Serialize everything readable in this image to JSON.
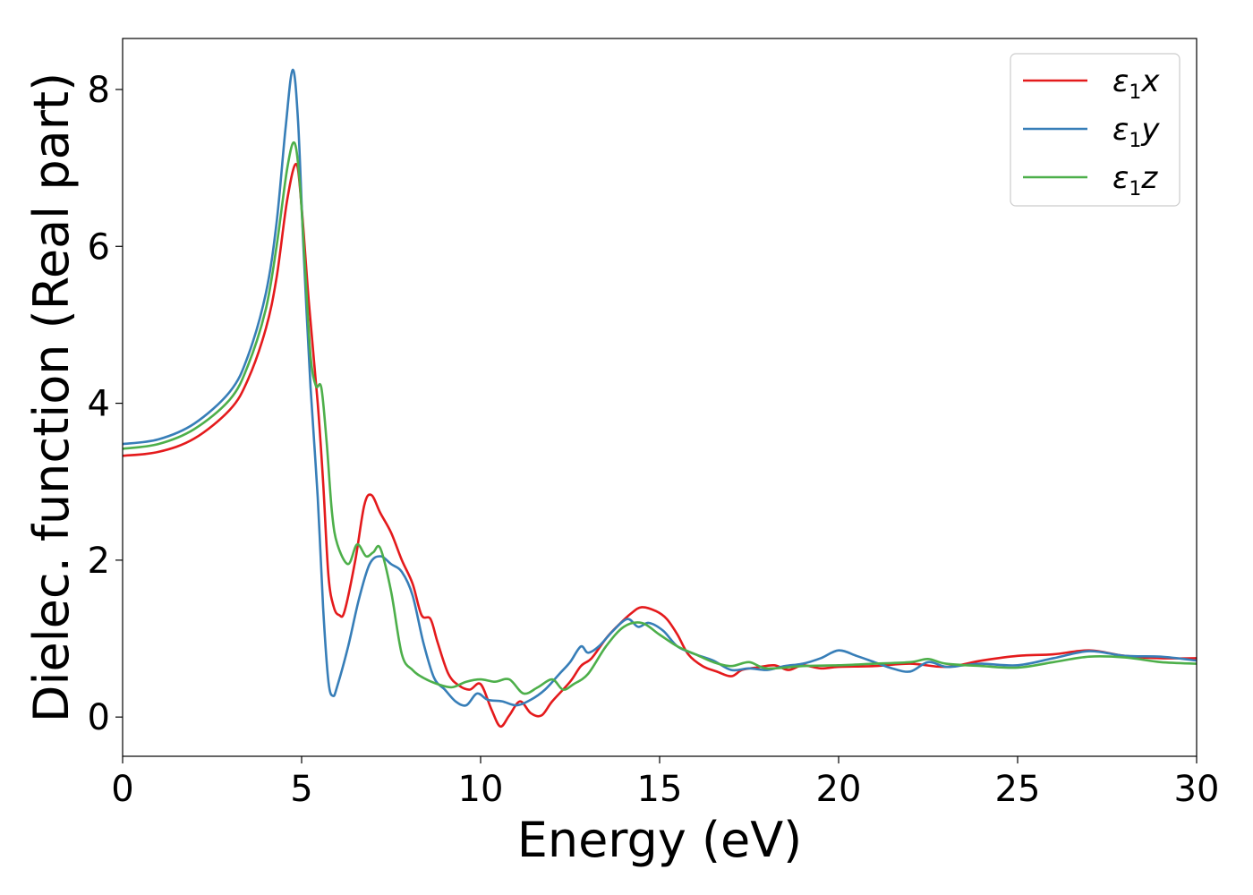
{
  "chart_data": {
    "type": "line",
    "title": "",
    "xlabel": "Energy (eV)",
    "ylabel": "Dielec. function (Real part)",
    "xlim": [
      0,
      30
    ],
    "ylim": [
      -0.5,
      8.65
    ],
    "xticks": [
      0,
      5,
      10,
      15,
      20,
      25,
      30
    ],
    "xtick_labels": [
      "0",
      "5",
      "10",
      "15",
      "20",
      "25",
      "30"
    ],
    "yticks": [
      0,
      2,
      4,
      6,
      8
    ],
    "ytick_labels": [
      "0",
      "2",
      "4",
      "6",
      "8"
    ],
    "grid": false,
    "legend_position": "top-right",
    "series": [
      {
        "name": "ε1x",
        "legend": {
          "symbol": "ε",
          "sub": "1",
          "var": "x"
        },
        "color": "#e41a1c",
        "points": [
          [
            0,
            3.33
          ],
          [
            1,
            3.38
          ],
          [
            2,
            3.55
          ],
          [
            3,
            3.92
          ],
          [
            3.5,
            4.3
          ],
          [
            4,
            4.95
          ],
          [
            4.3,
            5.6
          ],
          [
            4.6,
            6.6
          ],
          [
            4.85,
            7.05
          ],
          [
            5.0,
            6.5
          ],
          [
            5.2,
            5.3
          ],
          [
            5.45,
            4.0
          ],
          [
            5.6,
            3.0
          ],
          [
            5.75,
            1.8
          ],
          [
            5.9,
            1.4
          ],
          [
            6.05,
            1.3
          ],
          [
            6.2,
            1.35
          ],
          [
            6.5,
            2.0
          ],
          [
            6.75,
            2.7
          ],
          [
            6.95,
            2.83
          ],
          [
            7.2,
            2.6
          ],
          [
            7.5,
            2.35
          ],
          [
            7.8,
            2.0
          ],
          [
            8.1,
            1.7
          ],
          [
            8.35,
            1.3
          ],
          [
            8.6,
            1.25
          ],
          [
            8.8,
            0.95
          ],
          [
            9.1,
            0.55
          ],
          [
            9.4,
            0.4
          ],
          [
            9.7,
            0.35
          ],
          [
            10.0,
            0.42
          ],
          [
            10.3,
            0.1
          ],
          [
            10.55,
            -0.12
          ],
          [
            10.8,
            0.02
          ],
          [
            11.1,
            0.2
          ],
          [
            11.4,
            0.05
          ],
          [
            11.7,
            0.02
          ],
          [
            12.0,
            0.2
          ],
          [
            12.5,
            0.45
          ],
          [
            12.8,
            0.65
          ],
          [
            13.1,
            0.75
          ],
          [
            13.5,
            1.0
          ],
          [
            13.8,
            1.15
          ],
          [
            14.2,
            1.32
          ],
          [
            14.5,
            1.4
          ],
          [
            14.9,
            1.35
          ],
          [
            15.2,
            1.25
          ],
          [
            15.5,
            1.05
          ],
          [
            15.8,
            0.8
          ],
          [
            16.2,
            0.65
          ],
          [
            16.6,
            0.58
          ],
          [
            17.0,
            0.52
          ],
          [
            17.3,
            0.6
          ],
          [
            17.7,
            0.63
          ],
          [
            18.2,
            0.66
          ],
          [
            18.6,
            0.6
          ],
          [
            19.0,
            0.66
          ],
          [
            19.5,
            0.62
          ],
          [
            20.0,
            0.64
          ],
          [
            21.0,
            0.65
          ],
          [
            22.0,
            0.68
          ],
          [
            23.0,
            0.64
          ],
          [
            24.0,
            0.72
          ],
          [
            25.0,
            0.78
          ],
          [
            26.0,
            0.8
          ],
          [
            27.0,
            0.85
          ],
          [
            28.0,
            0.78
          ],
          [
            29.0,
            0.75
          ],
          [
            30.0,
            0.75
          ]
        ]
      },
      {
        "name": "ε1y",
        "legend": {
          "symbol": "ε",
          "sub": "1",
          "var": "y"
        },
        "color": "#377eb8",
        "points": [
          [
            0,
            3.48
          ],
          [
            1,
            3.54
          ],
          [
            2,
            3.74
          ],
          [
            3,
            4.15
          ],
          [
            3.5,
            4.6
          ],
          [
            4,
            5.4
          ],
          [
            4.3,
            6.3
          ],
          [
            4.55,
            7.5
          ],
          [
            4.75,
            8.25
          ],
          [
            4.9,
            7.6
          ],
          [
            5.05,
            6.0
          ],
          [
            5.25,
            4.2
          ],
          [
            5.45,
            2.8
          ],
          [
            5.6,
            1.4
          ],
          [
            5.75,
            0.45
          ],
          [
            5.88,
            0.27
          ],
          [
            6.0,
            0.4
          ],
          [
            6.3,
            0.9
          ],
          [
            6.6,
            1.5
          ],
          [
            6.9,
            1.95
          ],
          [
            7.2,
            2.05
          ],
          [
            7.5,
            1.95
          ],
          [
            7.8,
            1.85
          ],
          [
            8.1,
            1.55
          ],
          [
            8.4,
            0.95
          ],
          [
            8.7,
            0.5
          ],
          [
            9.0,
            0.35
          ],
          [
            9.3,
            0.2
          ],
          [
            9.6,
            0.15
          ],
          [
            9.9,
            0.3
          ],
          [
            10.2,
            0.22
          ],
          [
            10.6,
            0.2
          ],
          [
            11.0,
            0.15
          ],
          [
            11.4,
            0.22
          ],
          [
            11.8,
            0.35
          ],
          [
            12.2,
            0.55
          ],
          [
            12.5,
            0.7
          ],
          [
            12.8,
            0.9
          ],
          [
            13.0,
            0.82
          ],
          [
            13.3,
            0.9
          ],
          [
            13.7,
            1.1
          ],
          [
            14.1,
            1.25
          ],
          [
            14.4,
            1.15
          ],
          [
            14.7,
            1.2
          ],
          [
            15.1,
            1.1
          ],
          [
            15.5,
            0.9
          ],
          [
            16.0,
            0.8
          ],
          [
            16.5,
            0.72
          ],
          [
            17.0,
            0.6
          ],
          [
            17.5,
            0.62
          ],
          [
            18.0,
            0.6
          ],
          [
            18.5,
            0.65
          ],
          [
            19.0,
            0.68
          ],
          [
            19.5,
            0.75
          ],
          [
            20.0,
            0.85
          ],
          [
            20.5,
            0.78
          ],
          [
            21.0,
            0.7
          ],
          [
            21.5,
            0.62
          ],
          [
            22.0,
            0.58
          ],
          [
            22.5,
            0.7
          ],
          [
            23.0,
            0.64
          ],
          [
            23.5,
            0.66
          ],
          [
            24.0,
            0.68
          ],
          [
            25.0,
            0.66
          ],
          [
            26.0,
            0.75
          ],
          [
            27.0,
            0.84
          ],
          [
            28.0,
            0.78
          ],
          [
            29.0,
            0.77
          ],
          [
            30.0,
            0.72
          ]
        ]
      },
      {
        "name": "ε1z",
        "legend": {
          "symbol": "ε",
          "sub": "1",
          "var": "z"
        },
        "color": "#4daf4a",
        "points": [
          [
            0,
            3.42
          ],
          [
            1,
            3.48
          ],
          [
            2,
            3.67
          ],
          [
            3,
            4.05
          ],
          [
            3.5,
            4.48
          ],
          [
            4,
            5.2
          ],
          [
            4.3,
            6.0
          ],
          [
            4.6,
            7.0
          ],
          [
            4.8,
            7.32
          ],
          [
            4.95,
            6.8
          ],
          [
            5.1,
            5.7
          ],
          [
            5.25,
            4.6
          ],
          [
            5.4,
            4.22
          ],
          [
            5.55,
            4.2
          ],
          [
            5.7,
            3.5
          ],
          [
            5.85,
            2.6
          ],
          [
            6.0,
            2.2
          ],
          [
            6.3,
            1.95
          ],
          [
            6.55,
            2.2
          ],
          [
            6.8,
            2.05
          ],
          [
            7.0,
            2.1
          ],
          [
            7.2,
            2.15
          ],
          [
            7.5,
            1.6
          ],
          [
            7.8,
            0.8
          ],
          [
            8.1,
            0.6
          ],
          [
            8.4,
            0.5
          ],
          [
            8.8,
            0.42
          ],
          [
            9.2,
            0.38
          ],
          [
            9.6,
            0.45
          ],
          [
            10.0,
            0.48
          ],
          [
            10.4,
            0.45
          ],
          [
            10.8,
            0.48
          ],
          [
            11.2,
            0.3
          ],
          [
            11.6,
            0.38
          ],
          [
            12.0,
            0.48
          ],
          [
            12.3,
            0.35
          ],
          [
            12.6,
            0.42
          ],
          [
            13.0,
            0.55
          ],
          [
            13.5,
            0.9
          ],
          [
            14.0,
            1.15
          ],
          [
            14.5,
            1.2
          ],
          [
            15.0,
            1.05
          ],
          [
            15.5,
            0.9
          ],
          [
            16.0,
            0.8
          ],
          [
            16.5,
            0.7
          ],
          [
            17.0,
            0.65
          ],
          [
            17.5,
            0.7
          ],
          [
            18.0,
            0.62
          ],
          [
            19.0,
            0.65
          ],
          [
            20.0,
            0.66
          ],
          [
            21.0,
            0.68
          ],
          [
            22.0,
            0.7
          ],
          [
            22.5,
            0.74
          ],
          [
            23.0,
            0.68
          ],
          [
            24.0,
            0.65
          ],
          [
            25.0,
            0.63
          ],
          [
            26.0,
            0.7
          ],
          [
            27.0,
            0.77
          ],
          [
            28.0,
            0.76
          ],
          [
            29.0,
            0.7
          ],
          [
            30.0,
            0.68
          ]
        ]
      }
    ]
  }
}
